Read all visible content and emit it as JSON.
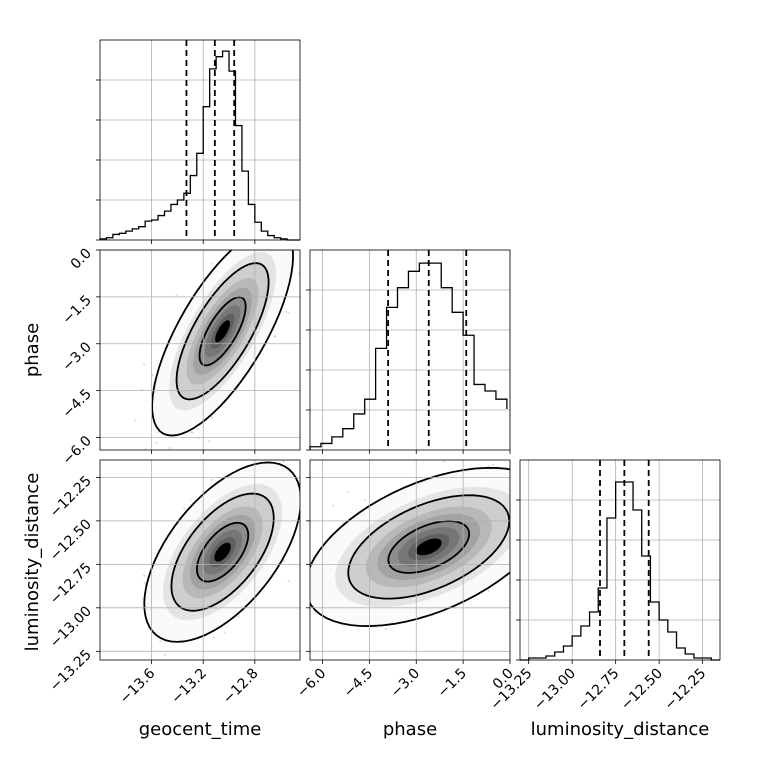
{
  "chart_data": {
    "type": "corner",
    "parameters": [
      {
        "name": "geocent_time",
        "range": [
          -14.0,
          -12.45
        ],
        "ticks": [
          -13.6,
          -13.2,
          -12.8
        ],
        "tick_labels": [
          "−13.6",
          "−13.2",
          "−12.8"
        ],
        "quantiles": [
          -13.33,
          -13.11,
          -12.96
        ],
        "hist_bins": [
          -14.0,
          -13.95,
          -13.9,
          -13.85,
          -13.8,
          -13.75,
          -13.7,
          -13.65,
          -13.6,
          -13.55,
          -13.5,
          -13.45,
          -13.4,
          -13.35,
          -13.3,
          -13.25,
          -13.2,
          -13.15,
          -13.1,
          -13.05,
          -13.0,
          -12.95,
          -12.9,
          -12.85,
          -12.8,
          -12.75,
          -12.7,
          -12.65,
          -12.6,
          -12.55,
          -12.5,
          -12.45
        ],
        "hist_counts": [
          1,
          2,
          5,
          6,
          8,
          10,
          12,
          17,
          18,
          22,
          26,
          32,
          36,
          42,
          58,
          78,
          120,
          154,
          165,
          170,
          152,
          103,
          62,
          32,
          16,
          8,
          4,
          2,
          1,
          0,
          0
        ],
        "hist_max": 180
      },
      {
        "name": "phase",
        "range": [
          -6.4,
          0.0
        ],
        "ticks": [
          -6.0,
          -4.5,
          -3.0,
          -1.5,
          0.0
        ],
        "tick_labels": [
          "−6.0",
          "−4.5",
          "−3.0",
          "−1.5",
          "0.0"
        ],
        "quantiles": [
          -3.9,
          -2.6,
          -1.4
        ],
        "hist_bins": [
          -6.4,
          -6.05,
          -5.7,
          -5.35,
          -5.0,
          -4.65,
          -4.3,
          -3.95,
          -3.6,
          -3.25,
          -2.9,
          -2.55,
          -2.2,
          -1.85,
          -1.5,
          -1.15,
          -0.8,
          -0.45,
          -0.1
        ],
        "hist_counts": [
          2,
          4,
          8,
          13,
          22,
          31,
          62,
          87,
          99,
          109,
          114,
          114,
          99,
          84,
          70,
          40,
          36,
          31,
          25
        ],
        "hist_max": 122
      },
      {
        "name": "luminosity_distance",
        "range": [
          -13.3,
          -12.15
        ],
        "ticks": [
          -13.25,
          -13.0,
          -12.75,
          -12.5,
          -12.25
        ],
        "tick_labels": [
          "−13.25",
          "−13.00",
          "−12.75",
          "−12.50",
          "−12.25"
        ],
        "quantiles": [
          -12.84,
          -12.7,
          -12.56
        ],
        "hist_bins": [
          -13.3,
          -13.25,
          -13.2,
          -13.15,
          -13.1,
          -13.05,
          -13.0,
          -12.95,
          -12.9,
          -12.85,
          -12.8,
          -12.75,
          -12.7,
          -12.65,
          -12.6,
          -12.55,
          -12.5,
          -12.45,
          -12.4,
          -12.35,
          -12.3,
          -12.25,
          -12.2,
          -12.15
        ],
        "hist_counts": [
          0,
          1,
          1,
          2,
          4,
          7,
          12,
          17,
          24,
          36,
          71,
          89,
          89,
          75,
          52,
          29,
          20,
          14,
          6,
          3,
          1,
          1,
          0
        ],
        "hist_max": 100
      }
    ],
    "hist_grid_fractions": [
      0.2,
      0.4,
      0.6,
      0.8
    ],
    "contour_levels": [
      0.39,
      0.86,
      0.99
    ],
    "grid": true,
    "ylabels": {
      "row1": "phase",
      "row2": "luminosity_distance"
    },
    "xlabels": {
      "col0": "geocent_time",
      "col1": "phase",
      "col2": "luminosity_distance"
    },
    "pairs": [
      {
        "row": 1,
        "col": 0,
        "mean": [
          -13.05,
          -2.6
        ],
        "sigma": [
          0.18,
          1.1
        ],
        "rho": 0.72
      },
      {
        "row": 2,
        "col": 0,
        "mean": [
          -13.05,
          -12.68
        ],
        "sigma": [
          0.2,
          0.17
        ],
        "rho": 0.58
      },
      {
        "row": 2,
        "col": 1,
        "mean": [
          -2.6,
          -12.65
        ],
        "sigma": [
          1.3,
          0.15
        ],
        "rho": 0.5
      }
    ]
  }
}
